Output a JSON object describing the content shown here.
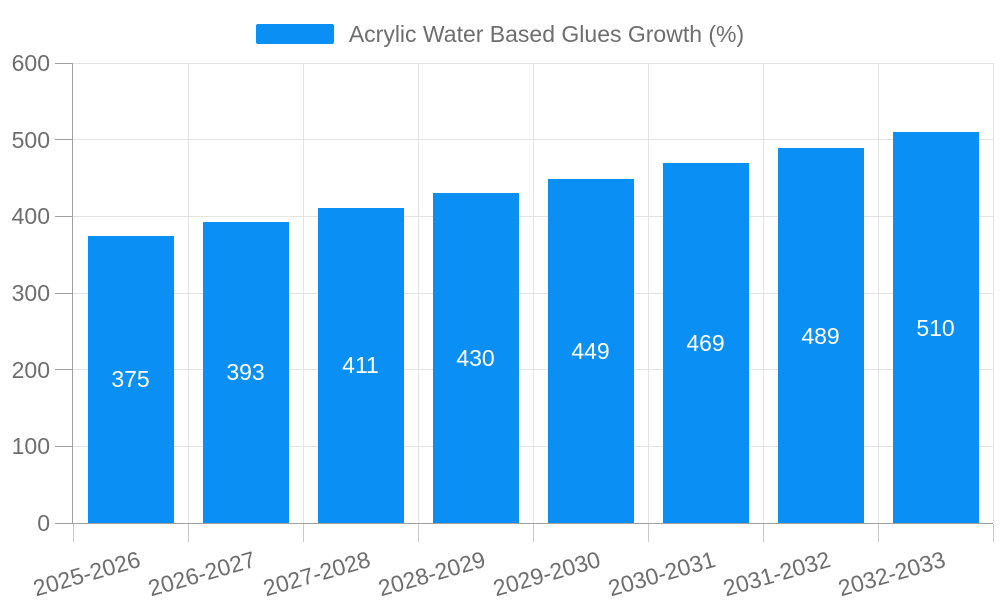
{
  "chart_data": {
    "type": "bar",
    "legend": "Acrylic Water Based Glues Growth (%)",
    "categories": [
      "2025-2026",
      "2026-2027",
      "2027-2028",
      "2028-2029",
      "2029-2030",
      "2030-2031",
      "2031-2032",
      "2032-2033"
    ],
    "values": [
      375,
      393,
      411,
      430,
      449,
      469,
      489,
      510
    ],
    "xlabel": "",
    "ylabel": "",
    "ylim": [
      0,
      600
    ],
    "yticks": [
      0,
      100,
      200,
      300,
      400,
      500,
      600
    ],
    "grid": true,
    "legend_position": "top-center",
    "value_labels": "centered-inside-bars",
    "colors": {
      "bar": "#0a8ff5",
      "value_label": "#ffffff",
      "axis_text": "#6e6e6e",
      "axis_line": "#a0a0a0",
      "x_tick": "#c8c8c8",
      "grid": "#e3e3e3",
      "background": "#ffffff"
    }
  }
}
